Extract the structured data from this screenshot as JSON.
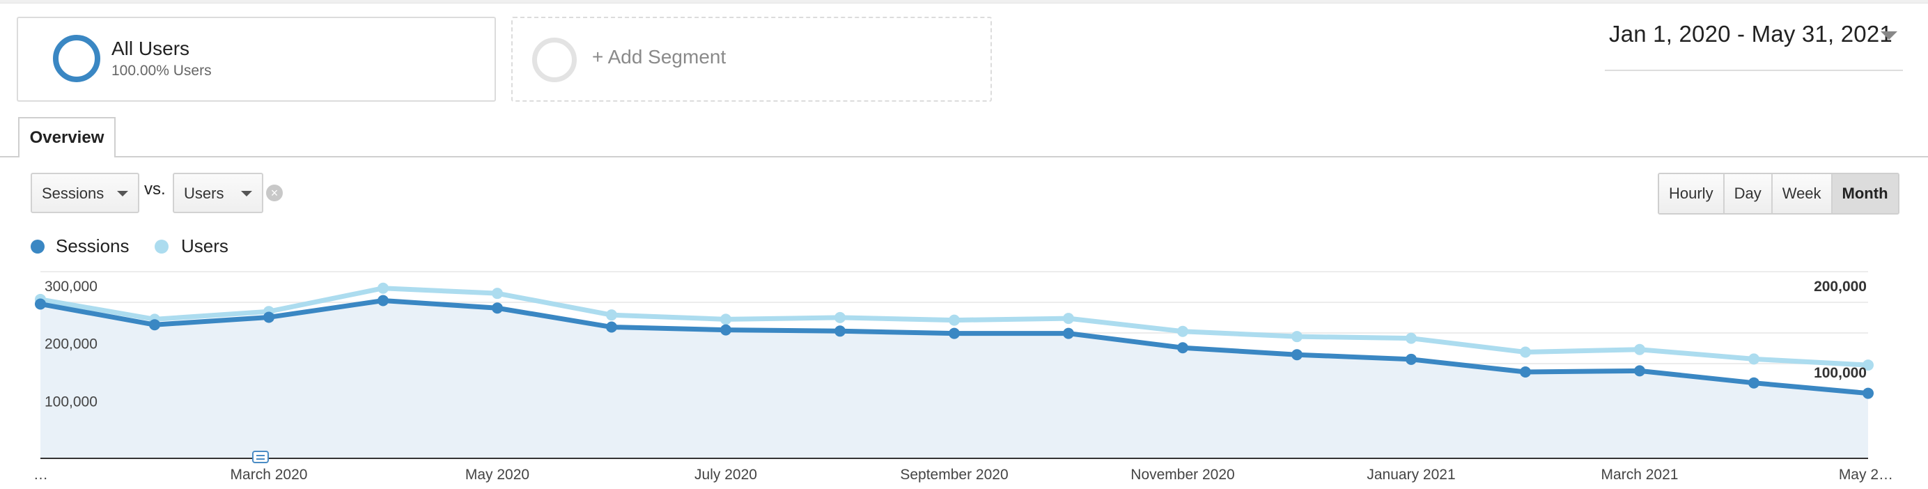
{
  "segments": {
    "active": {
      "title": "All Users",
      "subtitle": "100.00% Users",
      "color": "#3a87c3"
    },
    "add_label": "+ Add Segment"
  },
  "date_range": {
    "label": "Jan 1, 2020 - May 31, 2021"
  },
  "tabs": [
    {
      "label": "Overview",
      "active": true
    }
  ],
  "metrics": {
    "primary": "Sessions",
    "vs_label": "vs.",
    "secondary": "Users"
  },
  "granularity": {
    "options": [
      "Hourly",
      "Day",
      "Week",
      "Month"
    ],
    "selected": "Month"
  },
  "legend": [
    {
      "name": "Sessions",
      "color": "#3a87c3"
    },
    {
      "name": "Users",
      "color": "#acdcef"
    }
  ],
  "chart_data": {
    "type": "line",
    "x_labels": [
      "…",
      "March 2020",
      "May 2020",
      "July 2020",
      "September 2020",
      "November 2020",
      "January 2021",
      "March 2021",
      "May 2…"
    ],
    "x": [
      "Jan 2020",
      "Feb 2020",
      "Mar 2020",
      "Apr 2020",
      "May 2020",
      "Jun 2020",
      "Jul 2020",
      "Aug 2020",
      "Sep 2020",
      "Oct 2020",
      "Nov 2020",
      "Dec 2020",
      "Jan 2021",
      "Feb 2021",
      "Mar 2021",
      "Apr 2021",
      "May 2021"
    ],
    "series": [
      {
        "name": "Sessions",
        "axis": "left",
        "color": "#3a87c3",
        "area": true,
        "values": [
          268000,
          232000,
          245000,
          274000,
          261000,
          228000,
          223000,
          221000,
          217000,
          217000,
          192000,
          180000,
          172000,
          150000,
          152000,
          131000,
          113000
        ]
      },
      {
        "name": "Users",
        "axis": "right",
        "color": "#acdcef",
        "area": false,
        "values": [
          184000,
          161000,
          170000,
          197000,
          191000,
          166000,
          161000,
          163000,
          160000,
          162000,
          147000,
          141000,
          139000,
          123000,
          126000,
          115000,
          108000
        ]
      }
    ],
    "left_axis": {
      "ticks": [
        "300,000",
        "200,000",
        "100,000"
      ],
      "tick_values": [
        300000,
        200000,
        100000
      ],
      "range": [
        0,
        300000
      ]
    },
    "right_axis": {
      "ticks": [
        "200,000",
        "100,000"
      ],
      "tick_values": [
        200000,
        100000
      ],
      "range": [
        0,
        200000
      ]
    },
    "grid": true,
    "annotation_marker": true
  }
}
